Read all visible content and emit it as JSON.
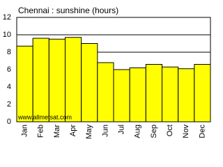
{
  "chart_data": {
    "type": "bar",
    "title": "Chennai : sunshine (hours)",
    "categories": [
      "Jan",
      "Feb",
      "Mar",
      "Apr",
      "May",
      "Jun",
      "Jul",
      "Aug",
      "Sep",
      "Oct",
      "Nov",
      "Dec"
    ],
    "values": [
      8.7,
      9.6,
      9.5,
      9.7,
      9.0,
      6.8,
      6.0,
      6.2,
      6.6,
      6.3,
      6.1,
      6.6
    ],
    "color": "#ffff00",
    "ylim": [
      0,
      12
    ],
    "yticks": [
      0,
      2,
      4,
      6,
      8,
      10,
      12
    ],
    "grid": true,
    "source": "www.allmetsat.com"
  }
}
